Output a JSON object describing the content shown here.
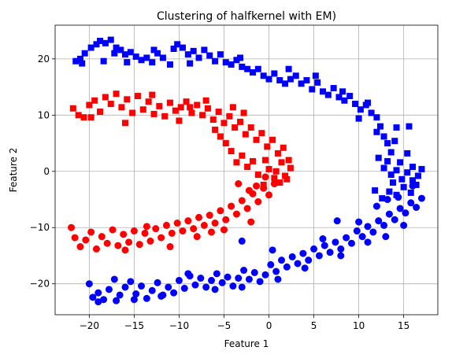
{
  "chart_data": {
    "type": "scatter",
    "title": "Clustering of halfkernel with EM)",
    "xlabel": "Feature 1",
    "ylabel": "Feature 2",
    "xlim": [
      -23.8,
      18.8
    ],
    "ylim": [
      -25.5,
      26.0
    ],
    "xticks": [
      -20,
      -15,
      -10,
      -5,
      0,
      5,
      10,
      15
    ],
    "yticks": [
      -20,
      -10,
      0,
      10,
      20
    ],
    "xtick_labels": [
      "−20",
      "−15",
      "−10",
      "−5",
      "0",
      "5",
      "10",
      "15"
    ],
    "ytick_labels": [
      "−20",
      "−10",
      "0",
      "10",
      "20"
    ],
    "grid": true,
    "legend": "none",
    "colors": {
      "red": "#ff0000",
      "blue": "#0000ff"
    },
    "series": [
      {
        "color": "#0000ff",
        "marker": "square",
        "points": [
          [
            -21.5,
            19.6
          ],
          [
            -21.0,
            20.0
          ],
          [
            -20.5,
            21.0
          ],
          [
            -20.8,
            19.2
          ],
          [
            -19.8,
            22.0
          ],
          [
            -19.2,
            22.6
          ],
          [
            -18.8,
            23.2
          ],
          [
            -18.2,
            22.8
          ],
          [
            -17.6,
            23.4
          ],
          [
            -17.0,
            22.0
          ],
          [
            -16.5,
            21.6
          ],
          [
            -16.0,
            20.8
          ],
          [
            -15.4,
            21.2
          ],
          [
            -14.8,
            20.4
          ],
          [
            -14.2,
            19.8
          ],
          [
            -13.6,
            20.2
          ],
          [
            -13.0,
            19.4
          ],
          [
            -12.4,
            21.0
          ],
          [
            -11.8,
            20.2
          ],
          [
            -11.0,
            19.0
          ],
          [
            -10.6,
            21.8
          ],
          [
            -10.2,
            22.6
          ],
          [
            -9.6,
            22.0
          ],
          [
            -9.0,
            20.8
          ],
          [
            -8.4,
            21.4
          ],
          [
            -7.8,
            20.2
          ],
          [
            -7.2,
            21.6
          ],
          [
            -6.6,
            20.6
          ],
          [
            -6.0,
            19.6
          ],
          [
            -5.4,
            20.8
          ],
          [
            -4.8,
            19.4
          ],
          [
            -4.2,
            19.0
          ],
          [
            -3.6,
            19.8
          ],
          [
            -3.0,
            18.6
          ],
          [
            -2.4,
            18.2
          ],
          [
            -1.8,
            17.6
          ],
          [
            -1.2,
            18.2
          ],
          [
            -0.6,
            17.0
          ],
          [
            0.0,
            16.4
          ],
          [
            0.6,
            17.4
          ],
          [
            1.2,
            16.2
          ],
          [
            1.8,
            15.6
          ],
          [
            2.4,
            16.4
          ],
          [
            3.0,
            17.0
          ],
          [
            3.6,
            15.6
          ],
          [
            4.2,
            16.2
          ],
          [
            4.8,
            14.6
          ],
          [
            5.4,
            15.8
          ],
          [
            6.0,
            14.2
          ],
          [
            6.6,
            13.6
          ],
          [
            7.2,
            14.8
          ],
          [
            7.8,
            13.2
          ],
          [
            8.4,
            12.6
          ],
          [
            9.0,
            13.4
          ],
          [
            9.6,
            12.0
          ],
          [
            10.2,
            11.0
          ],
          [
            10.8,
            11.8
          ],
          [
            11.4,
            10.4
          ],
          [
            12.0,
            9.6
          ],
          [
            12.4,
            8.0
          ],
          [
            12.8,
            6.2
          ],
          [
            13.2,
            5.0
          ],
          [
            13.6,
            3.4
          ],
          [
            13.2,
            1.8
          ],
          [
            12.8,
            0.6
          ],
          [
            13.6,
            -0.6
          ],
          [
            14.2,
            0.2
          ],
          [
            14.8,
            -1.4
          ],
          [
            15.4,
            -0.2
          ],
          [
            16.0,
            0.8
          ],
          [
            16.6,
            -0.8
          ],
          [
            17.0,
            0.4
          ],
          [
            16.4,
            -2.4
          ],
          [
            15.8,
            -3.8
          ],
          [
            15.0,
            -2.8
          ],
          [
            14.2,
            -4.2
          ],
          [
            13.4,
            -3.6
          ],
          [
            12.6,
            -4.8
          ],
          [
            11.8,
            -3.4
          ],
          [
            -18.4,
            19.6
          ],
          [
            -17.2,
            21.0
          ],
          [
            -15.8,
            19.4
          ],
          [
            -12.8,
            21.6
          ],
          [
            -8.8,
            19.2
          ],
          [
            -3.2,
            20.2
          ],
          [
            2.2,
            18.2
          ],
          [
            5.2,
            17.0
          ],
          [
            8.2,
            14.2
          ],
          [
            11.0,
            12.2
          ],
          [
            14.2,
            7.8
          ],
          [
            15.4,
            3.2
          ],
          [
            14.6,
            1.6
          ],
          [
            13.8,
            -2.0
          ],
          [
            16.0,
            -1.6
          ],
          [
            12.2,
            2.4
          ],
          [
            14.0,
            5.4
          ],
          [
            15.6,
            8.0
          ],
          [
            12.0,
            7.0
          ],
          [
            10.0,
            9.4
          ]
        ]
      },
      {
        "color": "#0000ff",
        "marker": "circle",
        "points": [
          [
            -20.0,
            -20.0
          ],
          [
            -19.6,
            -22.4
          ],
          [
            -19.0,
            -21.6
          ],
          [
            -18.4,
            -22.8
          ],
          [
            -17.8,
            -21.0
          ],
          [
            -17.2,
            -19.2
          ],
          [
            -16.6,
            -22.0
          ],
          [
            -16.0,
            -20.6
          ],
          [
            -15.4,
            -19.6
          ],
          [
            -14.8,
            -21.8
          ],
          [
            -14.2,
            -20.4
          ],
          [
            -13.6,
            -22.6
          ],
          [
            -13.0,
            -21.2
          ],
          [
            -12.4,
            -19.8
          ],
          [
            -11.8,
            -22.0
          ],
          [
            -11.2,
            -20.6
          ],
          [
            -10.6,
            -21.6
          ],
          [
            -10.0,
            -19.4
          ],
          [
            -9.4,
            -20.8
          ],
          [
            -8.8,
            -18.6
          ],
          [
            -8.2,
            -20.2
          ],
          [
            -7.6,
            -19.0
          ],
          [
            -7.0,
            -20.6
          ],
          [
            -6.4,
            -19.4
          ],
          [
            -5.8,
            -18.2
          ],
          [
            -5.2,
            -19.8
          ],
          [
            -4.6,
            -18.8
          ],
          [
            -4.0,
            -20.4
          ],
          [
            -3.4,
            -19.0
          ],
          [
            -2.8,
            -17.6
          ],
          [
            -2.2,
            -19.2
          ],
          [
            -1.6,
            -18.0
          ],
          [
            -1.0,
            -19.6
          ],
          [
            -0.4,
            -18.4
          ],
          [
            0.2,
            -16.6
          ],
          [
            0.8,
            -17.8
          ],
          [
            1.4,
            -15.8
          ],
          [
            2.0,
            -17.0
          ],
          [
            2.6,
            -15.2
          ],
          [
            3.2,
            -16.4
          ],
          [
            3.8,
            -14.6
          ],
          [
            4.4,
            -15.8
          ],
          [
            5.0,
            -13.8
          ],
          [
            5.6,
            -15.0
          ],
          [
            6.2,
            -13.2
          ],
          [
            6.8,
            -14.4
          ],
          [
            7.4,
            -12.6
          ],
          [
            8.0,
            -13.8
          ],
          [
            8.6,
            -11.8
          ],
          [
            9.2,
            -12.8
          ],
          [
            9.8,
            -10.6
          ],
          [
            10.4,
            -11.6
          ],
          [
            11.0,
            -9.8
          ],
          [
            11.6,
            -10.8
          ],
          [
            12.2,
            -8.8
          ],
          [
            12.8,
            -9.6
          ],
          [
            13.4,
            -7.6
          ],
          [
            14.0,
            -8.6
          ],
          [
            14.6,
            -6.6
          ],
          [
            15.2,
            -7.4
          ],
          [
            15.8,
            -5.6
          ],
          [
            16.4,
            -6.4
          ],
          [
            17.0,
            -4.8
          ],
          [
            13.2,
            -5.0
          ],
          [
            12.0,
            -6.2
          ],
          [
            -3.0,
            -12.4
          ],
          [
            0.4,
            -14.0
          ],
          [
            7.6,
            -8.8
          ],
          [
            10.0,
            -9.0
          ],
          [
            15.0,
            -9.6
          ],
          [
            -19.0,
            -23.2
          ],
          [
            -17.0,
            -23.0
          ],
          [
            -15.0,
            -22.8
          ],
          [
            -12.0,
            -22.2
          ],
          [
            -9.0,
            -18.2
          ],
          [
            -6.0,
            -21.0
          ],
          [
            -3.0,
            -20.6
          ],
          [
            1.0,
            -19.2
          ],
          [
            4.0,
            -17.2
          ],
          [
            6.0,
            -12.0
          ],
          [
            8.0,
            -15.0
          ],
          [
            11.0,
            -12.6
          ],
          [
            13.0,
            -11.6
          ],
          [
            14.4,
            -4.6
          ],
          [
            16.0,
            -2.6
          ]
        ]
      },
      {
        "color": "#ff0000",
        "marker": "square",
        "points": [
          [
            -21.8,
            11.2
          ],
          [
            -21.2,
            10.0
          ],
          [
            -20.6,
            9.6
          ],
          [
            -20.0,
            11.8
          ],
          [
            -19.4,
            12.6
          ],
          [
            -18.8,
            10.6
          ],
          [
            -18.2,
            13.2
          ],
          [
            -17.6,
            12.0
          ],
          [
            -17.0,
            13.8
          ],
          [
            -16.4,
            11.4
          ],
          [
            -15.8,
            12.8
          ],
          [
            -15.2,
            10.4
          ],
          [
            -14.6,
            13.4
          ],
          [
            -14.0,
            11.0
          ],
          [
            -13.4,
            12.4
          ],
          [
            -12.8,
            10.2
          ],
          [
            -12.2,
            11.6
          ],
          [
            -11.6,
            9.8
          ],
          [
            -11.0,
            12.2
          ],
          [
            -10.4,
            10.8
          ],
          [
            -9.8,
            11.4
          ],
          [
            -9.2,
            12.4
          ],
          [
            -8.6,
            10.4
          ],
          [
            -8.0,
            11.8
          ],
          [
            -7.4,
            10.0
          ],
          [
            -6.8,
            11.2
          ],
          [
            -6.2,
            9.2
          ],
          [
            -5.6,
            10.6
          ],
          [
            -5.0,
            8.6
          ],
          [
            -4.4,
            9.8
          ],
          [
            -3.8,
            7.8
          ],
          [
            -3.2,
            8.8
          ],
          [
            -2.6,
            6.6
          ],
          [
            -2.0,
            7.8
          ],
          [
            -1.4,
            5.6
          ],
          [
            -0.8,
            6.8
          ],
          [
            -0.2,
            4.4
          ],
          [
            0.4,
            5.6
          ],
          [
            1.0,
            3.2
          ],
          [
            1.6,
            4.2
          ],
          [
            2.2,
            2.0
          ],
          [
            2.4,
            0.6
          ],
          [
            1.8,
            -0.8
          ],
          [
            1.2,
            -2.0
          ],
          [
            0.6,
            -1.2
          ],
          [
            0.0,
            0.4
          ],
          [
            -0.6,
            -2.4
          ],
          [
            -1.2,
            -0.6
          ],
          [
            -1.8,
            1.8
          ],
          [
            -2.4,
            0.8
          ],
          [
            -3.0,
            2.8
          ],
          [
            -3.6,
            1.6
          ],
          [
            -4.2,
            3.6
          ],
          [
            -4.8,
            5.0
          ],
          [
            -5.4,
            6.2
          ],
          [
            -6.0,
            7.4
          ],
          [
            -16.0,
            8.6
          ],
          [
            -19.8,
            9.6
          ],
          [
            -13.0,
            13.6
          ],
          [
            -8.8,
            11.4
          ],
          [
            -10.0,
            9.0
          ],
          [
            -7.0,
            12.6
          ],
          [
            -4.0,
            11.4
          ],
          [
            -2.8,
            10.4
          ],
          [
            0.8,
            0.0
          ],
          [
            2.0,
            -1.4
          ],
          [
            -0.4,
            2.0
          ],
          [
            1.4,
            1.6
          ]
        ]
      },
      {
        "color": "#ff0000",
        "marker": "circle",
        "points": [
          [
            -22.0,
            -10.0
          ],
          [
            -21.6,
            -11.8
          ],
          [
            -21.0,
            -13.4
          ],
          [
            -20.4,
            -12.2
          ],
          [
            -19.8,
            -10.8
          ],
          [
            -19.2,
            -13.8
          ],
          [
            -18.6,
            -11.6
          ],
          [
            -18.0,
            -12.8
          ],
          [
            -17.4,
            -10.4
          ],
          [
            -16.8,
            -13.2
          ],
          [
            -16.2,
            -11.2
          ],
          [
            -15.6,
            -12.6
          ],
          [
            -15.0,
            -10.6
          ],
          [
            -14.4,
            -13.0
          ],
          [
            -13.8,
            -11.0
          ],
          [
            -13.2,
            -12.4
          ],
          [
            -12.6,
            -10.2
          ],
          [
            -12.0,
            -11.8
          ],
          [
            -11.4,
            -9.6
          ],
          [
            -10.8,
            -11.0
          ],
          [
            -10.2,
            -9.2
          ],
          [
            -9.6,
            -10.6
          ],
          [
            -9.0,
            -8.8
          ],
          [
            -8.4,
            -10.2
          ],
          [
            -7.8,
            -8.2
          ],
          [
            -7.2,
            -9.6
          ],
          [
            -6.6,
            -7.8
          ],
          [
            -6.0,
            -9.2
          ],
          [
            -5.4,
            -7.0
          ],
          [
            -4.8,
            -8.6
          ],
          [
            -4.2,
            -6.2
          ],
          [
            -3.6,
            -7.6
          ],
          [
            -3.0,
            -5.2
          ],
          [
            -2.4,
            -6.6
          ],
          [
            -1.8,
            -4.0
          ],
          [
            -1.2,
            -5.4
          ],
          [
            -0.6,
            -3.0
          ],
          [
            0.0,
            -4.2
          ],
          [
            0.6,
            -2.2
          ],
          [
            -0.4,
            -1.0
          ],
          [
            -1.4,
            -2.6
          ],
          [
            -2.2,
            -3.4
          ],
          [
            -3.4,
            -2.2
          ],
          [
            -16.0,
            -14.0
          ],
          [
            -11.0,
            -13.4
          ],
          [
            -8.0,
            -11.6
          ],
          [
            -5.0,
            -10.4
          ],
          [
            -2.0,
            -9.0
          ],
          [
            -6.4,
            -10.8
          ],
          [
            -13.6,
            -9.8
          ]
        ]
      }
    ]
  }
}
